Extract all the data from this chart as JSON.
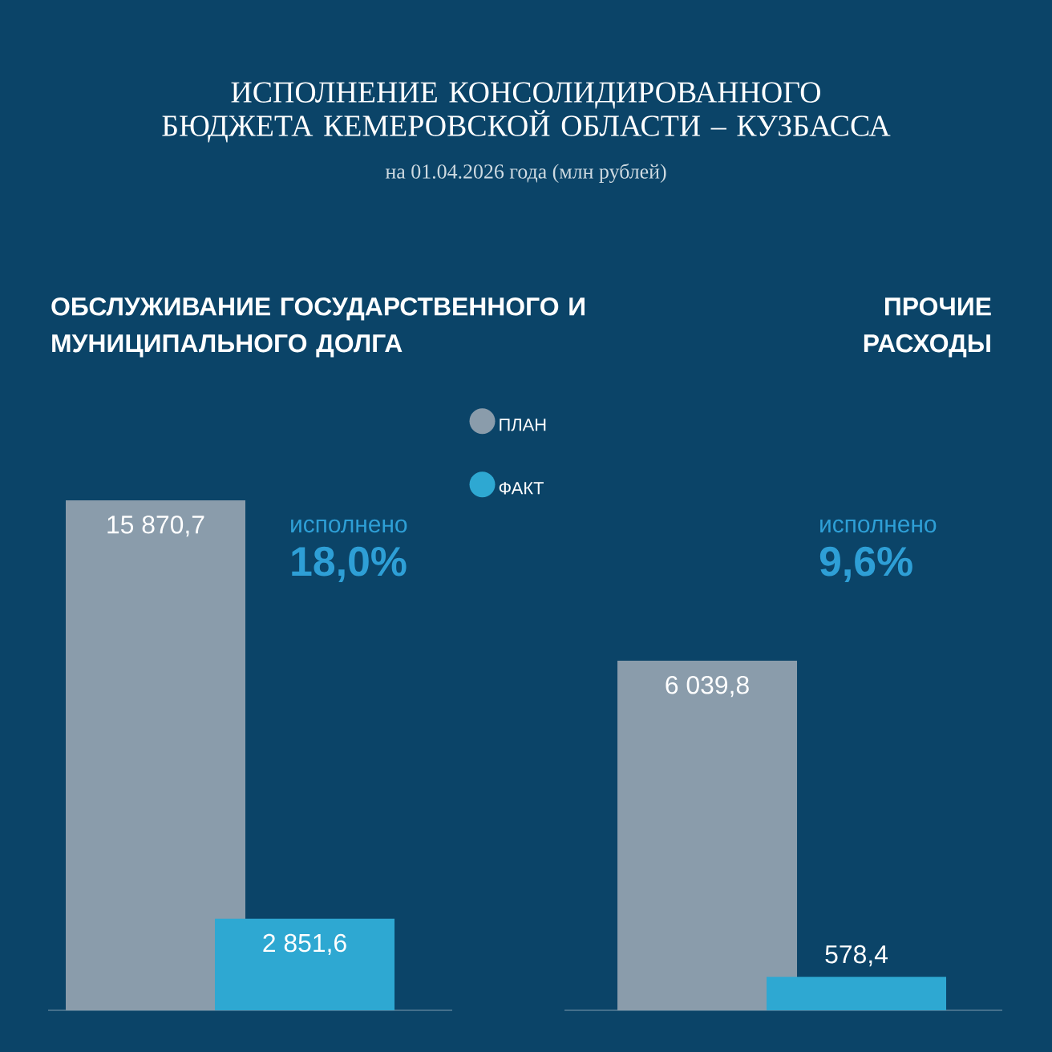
{
  "chart_data": [
    {
      "type": "bar",
      "title": "ИСПОЛНЕНИЕ КОНСОЛИДИРОВАННОГО БЮДЖЕТА КЕМЕРОВСКОЙ ОБЛАСТИ – КУЗБАССА",
      "subtitle": "на 01.04.2026 года (млн рублей)",
      "categories": [
        null
      ],
      "legend": "right",
      "series": [
        {
          "name": "ПЛАН",
          "color": "#8a9cab",
          "values": [
            15870.7
          ],
          "value_labels": [
            "15 870,7"
          ]
        },
        {
          "name": "ФАКТ",
          "color": "#2ea8d2",
          "values": [
            2851.6
          ],
          "value_labels": [
            "2 851,6"
          ]
        }
      ],
      "annotations": [
        "ОБСЛУЖИВАНИЕ ГОСУДАРСТВЕННОГО И МУНИЦИПАЛЬНОГО ДОЛГА",
        "исполнено",
        "18,0%"
      ]
    },
    {
      "type": "bar",
      "categories": [
        null
      ],
      "series": [
        {
          "color": "#8a9cab",
          "values": [
            6039.8
          ],
          "value_labels": [
            "6 039,8"
          ]
        },
        {
          "color": "#2ea8d2",
          "values": [
            578.4
          ],
          "value_labels": [
            "578,4"
          ]
        }
      ],
      "annotations": [
        "ПРОЧИЕ РАСХОДЫ",
        "исполнено",
        "9,6%"
      ]
    }
  ]
}
